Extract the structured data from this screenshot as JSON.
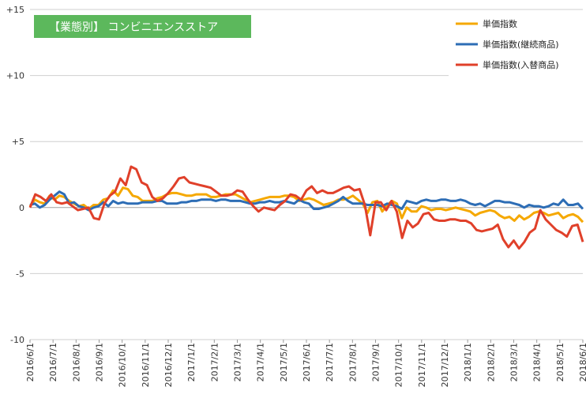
{
  "chart_data": {
    "type": "line",
    "title": "【業態別】 コンビニエンスストア",
    "title_bg_color": "#5cb85c",
    "y_tick_labels": [
      "+15",
      "+10",
      "+5",
      "0",
      "-5",
      "-10"
    ],
    "y_tick_values": [
      15,
      10,
      5,
      0,
      -5,
      -10
    ],
    "ylim": [
      -10,
      15
    ],
    "x_tick_labels": [
      "2016/6/1",
      "2016/7/1",
      "2016/8/1",
      "2016/9/1",
      "2016/10/1",
      "2016/11/1",
      "2016/12/1",
      "2017/1/1",
      "2017/2/1",
      "2017/3/1",
      "2017/4/1",
      "2017/5/1",
      "2017/6/1",
      "2017/7/1",
      "2017/8/1",
      "2017/9/1",
      "2017/10/1",
      "2017/11/1",
      "2017/12/1",
      "2018/1/1",
      "2018/2/1",
      "2018/3/1",
      "2018/4/1",
      "2018/5/1",
      "2018/6/1"
    ],
    "grid": "horizontal",
    "legend_position": "top-right",
    "series": [
      {
        "name": "単価指数",
        "color": "#f5a800",
        "values": [
          0.1,
          0.6,
          0.4,
          0.3,
          0.9,
          0.6,
          0.9,
          0.8,
          0.5,
          0.3,
          0.1,
          0.2,
          -0.1,
          0.2,
          0.2,
          0.6,
          0.7,
          1.3,
          0.9,
          1.5,
          1.4,
          0.9,
          0.8,
          0.5,
          0.5,
          0.5,
          0.7,
          0.8,
          1.0,
          1.1,
          1.1,
          1.0,
          0.9,
          0.9,
          1.0,
          1.0,
          1.0,
          0.8,
          0.8,
          0.9,
          1.0,
          1.0,
          1.0,
          0.8,
          0.6,
          0.4,
          0.5,
          0.6,
          0.7,
          0.8,
          0.8,
          0.8,
          0.9,
          0.9,
          0.8,
          0.5,
          0.6,
          0.7,
          0.6,
          0.4,
          0.2,
          0.3,
          0.4,
          0.6,
          0.6,
          0.7,
          0.9,
          0.6,
          0.3,
          -0.4,
          0.4,
          0.5,
          -0.3,
          0.2,
          0.5,
          0.3,
          -0.8,
          0.0,
          -0.3,
          -0.3,
          0.1,
          0.0,
          -0.2,
          -0.1,
          -0.1,
          -0.2,
          -0.1,
          0.0,
          -0.1,
          -0.2,
          -0.3,
          -0.6,
          -0.4,
          -0.3,
          -0.2,
          -0.3,
          -0.6,
          -0.8,
          -0.7,
          -1.0,
          -0.6,
          -0.9,
          -0.7,
          -0.4,
          -0.3,
          -0.4,
          -0.6,
          -0.5,
          -0.4,
          -0.8,
          -0.6,
          -0.5,
          -0.7,
          -1.1
        ]
      },
      {
        "name": "単価指数(継続商品)",
        "color": "#2d6db5",
        "values": [
          0.2,
          0.3,
          0.0,
          0.2,
          0.6,
          0.9,
          1.2,
          1.0,
          0.3,
          0.4,
          0.1,
          0.0,
          -0.2,
          0.0,
          0.1,
          0.4,
          0.1,
          0.5,
          0.3,
          0.4,
          0.3,
          0.3,
          0.3,
          0.4,
          0.4,
          0.4,
          0.5,
          0.5,
          0.3,
          0.3,
          0.3,
          0.4,
          0.4,
          0.5,
          0.5,
          0.6,
          0.6,
          0.6,
          0.5,
          0.6,
          0.6,
          0.5,
          0.5,
          0.5,
          0.4,
          0.3,
          0.3,
          0.4,
          0.4,
          0.5,
          0.4,
          0.4,
          0.5,
          0.4,
          0.3,
          0.6,
          0.4,
          0.3,
          -0.1,
          -0.1,
          0.0,
          0.1,
          0.3,
          0.5,
          0.8,
          0.5,
          0.3,
          0.3,
          0.3,
          0.2,
          0.2,
          0.2,
          0.1,
          0.3,
          0.2,
          0.1,
          -0.1,
          0.5,
          0.4,
          0.3,
          0.5,
          0.6,
          0.5,
          0.5,
          0.6,
          0.6,
          0.5,
          0.5,
          0.6,
          0.5,
          0.3,
          0.2,
          0.3,
          0.1,
          0.3,
          0.5,
          0.5,
          0.4,
          0.4,
          0.3,
          0.2,
          0.0,
          0.2,
          0.1,
          0.1,
          0.0,
          0.1,
          0.3,
          0.2,
          0.6,
          0.2,
          0.2,
          0.3,
          -0.1
        ]
      },
      {
        "name": "単価指数(入替商品)",
        "color": "#e0402a",
        "values": [
          0.0,
          1.0,
          0.8,
          0.5,
          1.0,
          0.4,
          0.3,
          0.4,
          0.1,
          -0.2,
          -0.1,
          0.0,
          -0.8,
          -0.9,
          0.3,
          0.9,
          1.2,
          2.2,
          1.7,
          3.1,
          2.9,
          1.9,
          1.7,
          0.8,
          0.5,
          0.7,
          1.1,
          1.6,
          2.2,
          2.3,
          1.9,
          1.8,
          1.7,
          1.6,
          1.5,
          1.2,
          0.9,
          0.9,
          1.0,
          1.3,
          1.2,
          0.6,
          0.1,
          -0.3,
          0.0,
          -0.1,
          -0.2,
          0.2,
          0.5,
          1.0,
          0.9,
          0.6,
          1.3,
          1.6,
          1.1,
          1.3,
          1.1,
          1.1,
          1.3,
          1.5,
          1.6,
          1.3,
          1.4,
          0.2,
          -2.1,
          0.4,
          0.4,
          -0.2,
          0.5,
          -0.3,
          -2.3,
          -1.0,
          -1.5,
          -1.2,
          -0.5,
          -0.4,
          -0.9,
          -1.0,
          -1.0,
          -0.9,
          -0.9,
          -1.0,
          -1.0,
          -1.2,
          -1.7,
          -1.8,
          -1.7,
          -1.6,
          -1.3,
          -2.4,
          -3.0,
          -2.5,
          -3.1,
          -2.6,
          -1.9,
          -1.6,
          -0.2,
          -0.9,
          -1.3,
          -1.7,
          -1.9,
          -2.2,
          -1.4,
          -1.3,
          -2.6
        ]
      }
    ]
  }
}
